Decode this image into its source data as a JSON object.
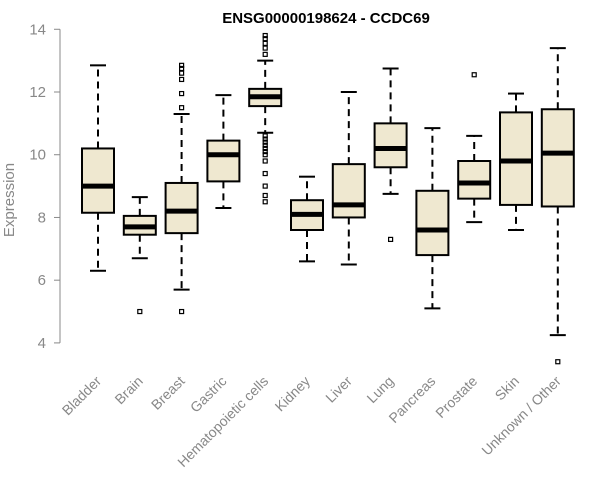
{
  "chart_data": {
    "type": "boxplot",
    "title": "ENSG00000198624 - CCDC69",
    "xlabel": "",
    "ylabel": "Expression",
    "ylim": [
      3.2,
      14.2
    ],
    "yticks": [
      "4",
      "6",
      "8",
      "10",
      "12",
      "14"
    ],
    "grid": false,
    "box_color": "#efe8d0",
    "line_color": "#000000",
    "categories": [
      "Bladder",
      "Brain",
      "Breast",
      "Gastric",
      "Hematopoietic cells",
      "Kidney",
      "Liver",
      "Lung",
      "Pancreas",
      "Prostate",
      "Skin",
      "Unknown / Other"
    ],
    "boxes": [
      {
        "whisker_low": 6.3,
        "q1": 8.15,
        "median": 9.0,
        "q3": 10.2,
        "whisker_high": 12.85,
        "outliers": []
      },
      {
        "whisker_low": 6.7,
        "q1": 7.45,
        "median": 7.7,
        "q3": 8.05,
        "whisker_high": 8.65,
        "outliers": [
          5.0
        ]
      },
      {
        "whisker_low": 5.7,
        "q1": 7.5,
        "median": 8.2,
        "q3": 9.1,
        "whisker_high": 11.3,
        "outliers": [
          5.0,
          11.5,
          11.95,
          12.4,
          12.6,
          12.75,
          12.85
        ]
      },
      {
        "whisker_low": 8.3,
        "q1": 9.15,
        "median": 10.0,
        "q3": 10.45,
        "whisker_high": 11.9,
        "outliers": []
      },
      {
        "whisker_low": 10.7,
        "q1": 11.55,
        "median": 11.85,
        "q3": 12.1,
        "whisker_high": 13.0,
        "outliers": [
          8.5,
          8.7,
          9.0,
          9.4,
          9.8,
          10.0,
          10.1,
          10.2,
          10.3,
          10.4,
          10.5,
          10.6,
          13.2,
          13.4,
          13.55,
          13.7,
          13.8
        ]
      },
      {
        "whisker_low": 6.6,
        "q1": 7.6,
        "median": 8.1,
        "q3": 8.55,
        "whisker_high": 9.3,
        "outliers": []
      },
      {
        "whisker_low": 6.5,
        "q1": 8.0,
        "median": 8.4,
        "q3": 9.7,
        "whisker_high": 12.0,
        "outliers": []
      },
      {
        "whisker_low": 8.75,
        "q1": 9.6,
        "median": 10.2,
        "q3": 11.0,
        "whisker_high": 12.75,
        "outliers": [
          7.3
        ]
      },
      {
        "whisker_low": 5.1,
        "q1": 6.8,
        "median": 7.6,
        "q3": 8.85,
        "whisker_high": 10.85,
        "outliers": []
      },
      {
        "whisker_low": 7.85,
        "q1": 8.6,
        "median": 9.1,
        "q3": 9.8,
        "whisker_high": 10.6,
        "outliers": [
          12.55
        ]
      },
      {
        "whisker_low": 7.6,
        "q1": 8.4,
        "median": 9.8,
        "q3": 11.35,
        "whisker_high": 11.95,
        "outliers": []
      },
      {
        "whisker_low": 4.25,
        "q1": 8.35,
        "median": 10.05,
        "q3": 11.45,
        "whisker_high": 13.4,
        "outliers": [
          3.4
        ]
      }
    ]
  }
}
